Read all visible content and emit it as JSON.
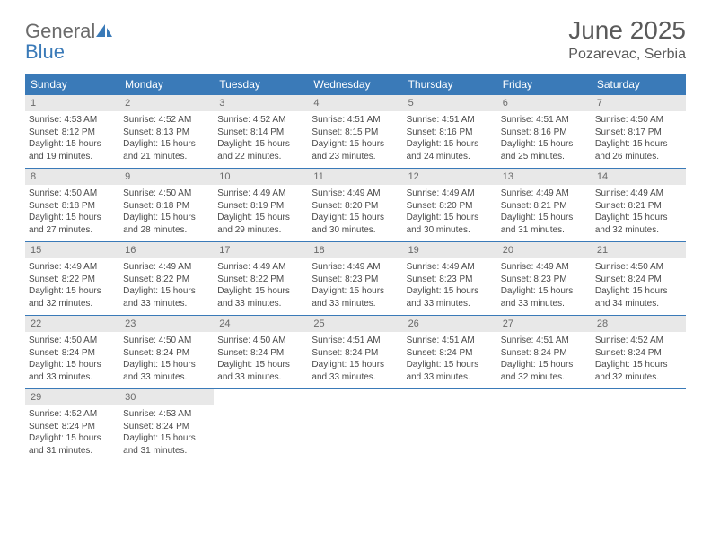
{
  "logo": {
    "text1": "General",
    "text2": "Blue"
  },
  "title": "June 2025",
  "location": "Pozarevac, Serbia",
  "colors": {
    "header_bg": "#3a7ab8",
    "header_fg": "#ffffff",
    "daynum_bg": "#e8e8e8",
    "daynum_fg": "#6a6a6a",
    "body_text": "#4a4a4a",
    "rule": "#3a7ab8"
  },
  "typography": {
    "title_fontsize": 28,
    "location_fontsize": 16,
    "dow_fontsize": 12,
    "daynum_fontsize": 11,
    "body_fontsize": 10
  },
  "dow": [
    "Sunday",
    "Monday",
    "Tuesday",
    "Wednesday",
    "Thursday",
    "Friday",
    "Saturday"
  ],
  "days": [
    {
      "n": "1",
      "sunrise": "4:53 AM",
      "sunset": "8:12 PM",
      "dayh": "15",
      "daym": "19"
    },
    {
      "n": "2",
      "sunrise": "4:52 AM",
      "sunset": "8:13 PM",
      "dayh": "15",
      "daym": "21"
    },
    {
      "n": "3",
      "sunrise": "4:52 AM",
      "sunset": "8:14 PM",
      "dayh": "15",
      "daym": "22"
    },
    {
      "n": "4",
      "sunrise": "4:51 AM",
      "sunset": "8:15 PM",
      "dayh": "15",
      "daym": "23"
    },
    {
      "n": "5",
      "sunrise": "4:51 AM",
      "sunset": "8:16 PM",
      "dayh": "15",
      "daym": "24"
    },
    {
      "n": "6",
      "sunrise": "4:51 AM",
      "sunset": "8:16 PM",
      "dayh": "15",
      "daym": "25"
    },
    {
      "n": "7",
      "sunrise": "4:50 AM",
      "sunset": "8:17 PM",
      "dayh": "15",
      "daym": "26"
    },
    {
      "n": "8",
      "sunrise": "4:50 AM",
      "sunset": "8:18 PM",
      "dayh": "15",
      "daym": "27"
    },
    {
      "n": "9",
      "sunrise": "4:50 AM",
      "sunset": "8:18 PM",
      "dayh": "15",
      "daym": "28"
    },
    {
      "n": "10",
      "sunrise": "4:49 AM",
      "sunset": "8:19 PM",
      "dayh": "15",
      "daym": "29"
    },
    {
      "n": "11",
      "sunrise": "4:49 AM",
      "sunset": "8:20 PM",
      "dayh": "15",
      "daym": "30"
    },
    {
      "n": "12",
      "sunrise": "4:49 AM",
      "sunset": "8:20 PM",
      "dayh": "15",
      "daym": "30"
    },
    {
      "n": "13",
      "sunrise": "4:49 AM",
      "sunset": "8:21 PM",
      "dayh": "15",
      "daym": "31"
    },
    {
      "n": "14",
      "sunrise": "4:49 AM",
      "sunset": "8:21 PM",
      "dayh": "15",
      "daym": "32"
    },
    {
      "n": "15",
      "sunrise": "4:49 AM",
      "sunset": "8:22 PM",
      "dayh": "15",
      "daym": "32"
    },
    {
      "n": "16",
      "sunrise": "4:49 AM",
      "sunset": "8:22 PM",
      "dayh": "15",
      "daym": "33"
    },
    {
      "n": "17",
      "sunrise": "4:49 AM",
      "sunset": "8:22 PM",
      "dayh": "15",
      "daym": "33"
    },
    {
      "n": "18",
      "sunrise": "4:49 AM",
      "sunset": "8:23 PM",
      "dayh": "15",
      "daym": "33"
    },
    {
      "n": "19",
      "sunrise": "4:49 AM",
      "sunset": "8:23 PM",
      "dayh": "15",
      "daym": "33"
    },
    {
      "n": "20",
      "sunrise": "4:49 AM",
      "sunset": "8:23 PM",
      "dayh": "15",
      "daym": "33"
    },
    {
      "n": "21",
      "sunrise": "4:50 AM",
      "sunset": "8:24 PM",
      "dayh": "15",
      "daym": "34"
    },
    {
      "n": "22",
      "sunrise": "4:50 AM",
      "sunset": "8:24 PM",
      "dayh": "15",
      "daym": "33"
    },
    {
      "n": "23",
      "sunrise": "4:50 AM",
      "sunset": "8:24 PM",
      "dayh": "15",
      "daym": "33"
    },
    {
      "n": "24",
      "sunrise": "4:50 AM",
      "sunset": "8:24 PM",
      "dayh": "15",
      "daym": "33"
    },
    {
      "n": "25",
      "sunrise": "4:51 AM",
      "sunset": "8:24 PM",
      "dayh": "15",
      "daym": "33"
    },
    {
      "n": "26",
      "sunrise": "4:51 AM",
      "sunset": "8:24 PM",
      "dayh": "15",
      "daym": "33"
    },
    {
      "n": "27",
      "sunrise": "4:51 AM",
      "sunset": "8:24 PM",
      "dayh": "15",
      "daym": "32"
    },
    {
      "n": "28",
      "sunrise": "4:52 AM",
      "sunset": "8:24 PM",
      "dayh": "15",
      "daym": "32"
    },
    {
      "n": "29",
      "sunrise": "4:52 AM",
      "sunset": "8:24 PM",
      "dayh": "15",
      "daym": "31"
    },
    {
      "n": "30",
      "sunrise": "4:53 AM",
      "sunset": "8:24 PM",
      "dayh": "15",
      "daym": "31"
    }
  ],
  "labels": {
    "sunrise": "Sunrise: ",
    "sunset": "Sunset: ",
    "daylight_a": "Daylight: ",
    "daylight_b": " hours and ",
    "daylight_c": " minutes."
  },
  "layout": {
    "columns": 7,
    "first_day_column": 0,
    "total_days": 30
  }
}
